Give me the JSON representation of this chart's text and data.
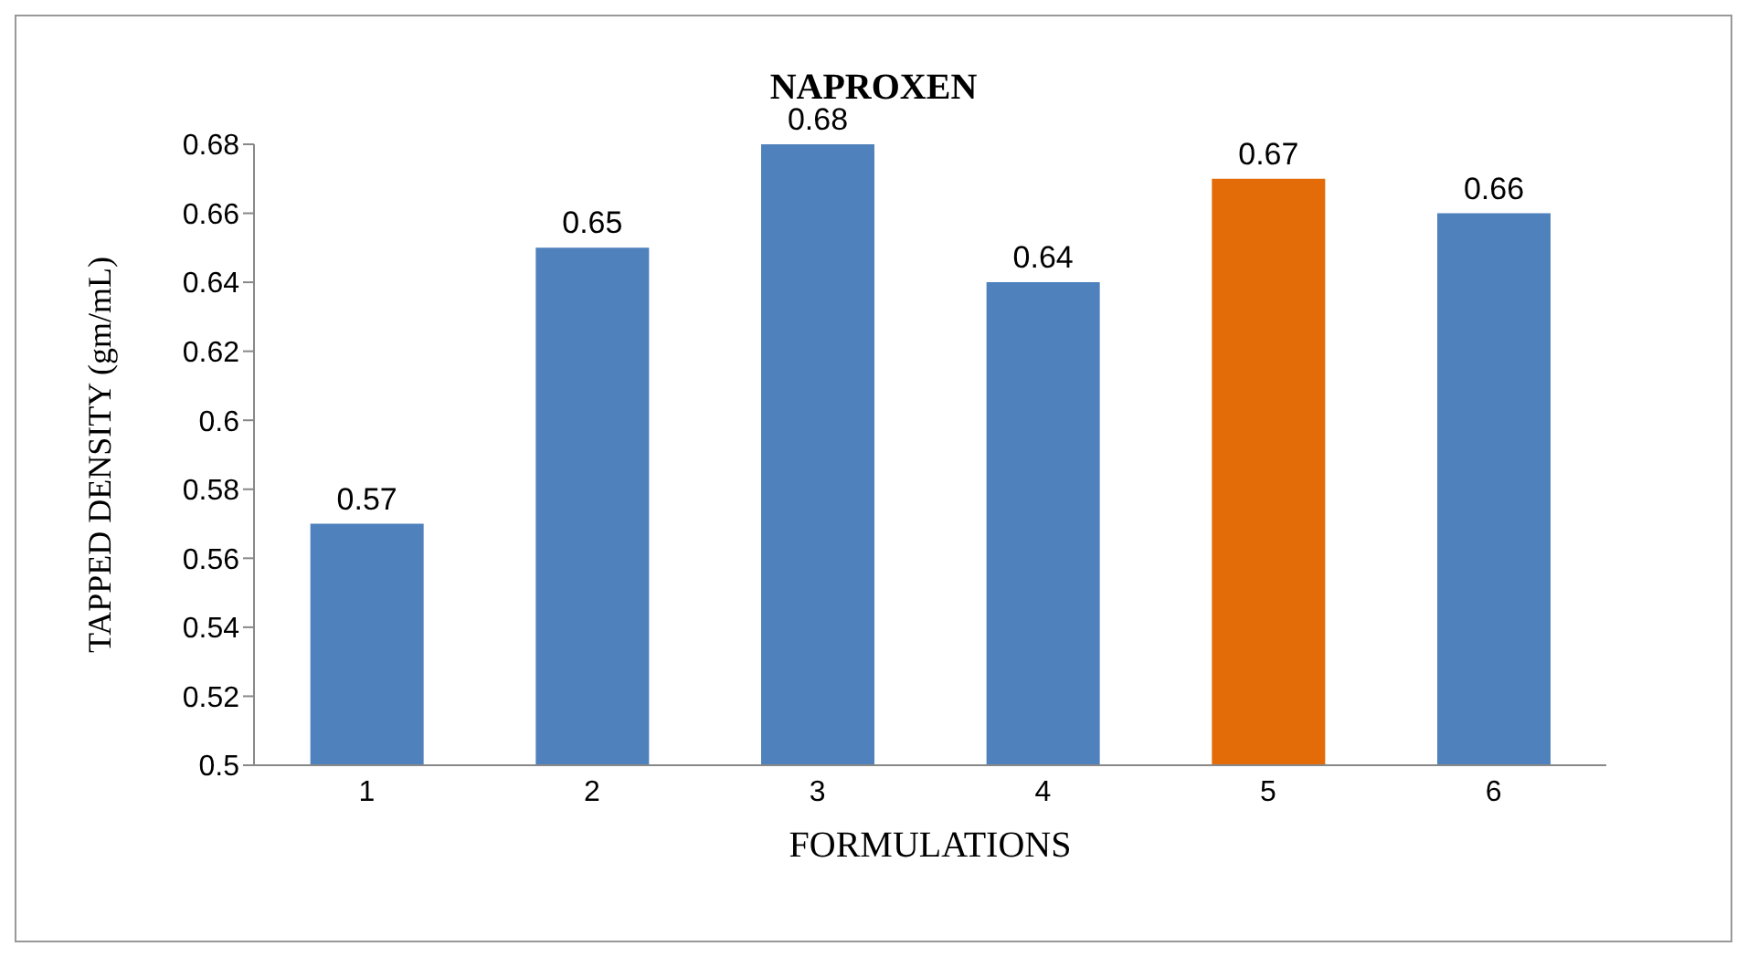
{
  "chart_data": {
    "type": "bar",
    "title": "NAPROXEN",
    "xlabel": "FORMULATIONS",
    "ylabel": "TAPPED DENSITY (gm/mL)",
    "categories": [
      "1",
      "2",
      "3",
      "4",
      "5",
      "6"
    ],
    "values": [
      0.57,
      0.65,
      0.68,
      0.64,
      0.67,
      0.66
    ],
    "colors": [
      "#4f81bd",
      "#4f81bd",
      "#4f81bd",
      "#4f81bd",
      "#e36c09",
      "#4f81bd"
    ],
    "ylim": [
      0.5,
      0.68
    ],
    "yticks": [
      0.5,
      0.52,
      0.54,
      0.56,
      0.58,
      0.6,
      0.62,
      0.64,
      0.66,
      0.68
    ],
    "data_labels": true,
    "grid": false
  }
}
